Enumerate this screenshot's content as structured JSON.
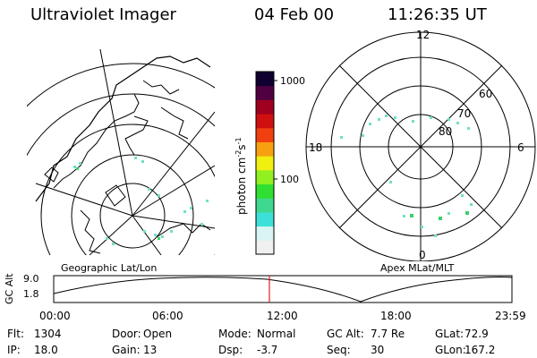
{
  "header": {
    "title": "Ultraviolet Imager",
    "date": "04 Feb 00",
    "time": "11:26:35 UT"
  },
  "geo_map": {
    "label": "Geographic Lat/Lon"
  },
  "color_scale": {
    "label_main": "photon cm",
    "label_sup1": "-2",
    "label_mid": "s",
    "label_sup2": "-1",
    "ticks": [
      "1000",
      "100"
    ]
  },
  "polar_plot": {
    "label": "Apex MLat/MLT",
    "mlt_labels": [
      "12",
      "18",
      "6",
      "0"
    ],
    "lat_labels": [
      "60",
      "70",
      "80"
    ]
  },
  "altitude_plot": {
    "ylabel": "GC Alt",
    "yticks": [
      "9.0",
      "1.8"
    ],
    "xticks": [
      "00:00",
      "06:00",
      "12:00",
      "18:00",
      "23:59"
    ]
  },
  "status": {
    "row1": [
      {
        "label": "Flt:",
        "value": "1304"
      },
      {
        "label": "Door:",
        "value": "Open"
      },
      {
        "label": "Mode:",
        "value": "Normal"
      },
      {
        "label": "GC Alt:",
        "value": "7.7 Re"
      },
      {
        "label": "GLat:",
        "value": "72.9"
      }
    ],
    "row2": [
      {
        "label": "IP:",
        "value": "18.0"
      },
      {
        "label": "Gain:",
        "value": "13"
      },
      {
        "label": "Dsp:",
        "value": "-3.7"
      },
      {
        "label": "Seq:",
        "value": "30"
      },
      {
        "label": "GLon:",
        "value": "167.2"
      }
    ]
  },
  "colors": {
    "aurora": "#6fe0c8",
    "aurora_green": "#3ccf6a",
    "marker": "#e02020",
    "colorbar": [
      "#f0f0f0",
      "#d8f4f4",
      "#3de0d8",
      "#40d890",
      "#30e030",
      "#90f020",
      "#f0f010",
      "#f8a010",
      "#f04010",
      "#d01010",
      "#a00020",
      "#500040",
      "#100030"
    ]
  }
}
